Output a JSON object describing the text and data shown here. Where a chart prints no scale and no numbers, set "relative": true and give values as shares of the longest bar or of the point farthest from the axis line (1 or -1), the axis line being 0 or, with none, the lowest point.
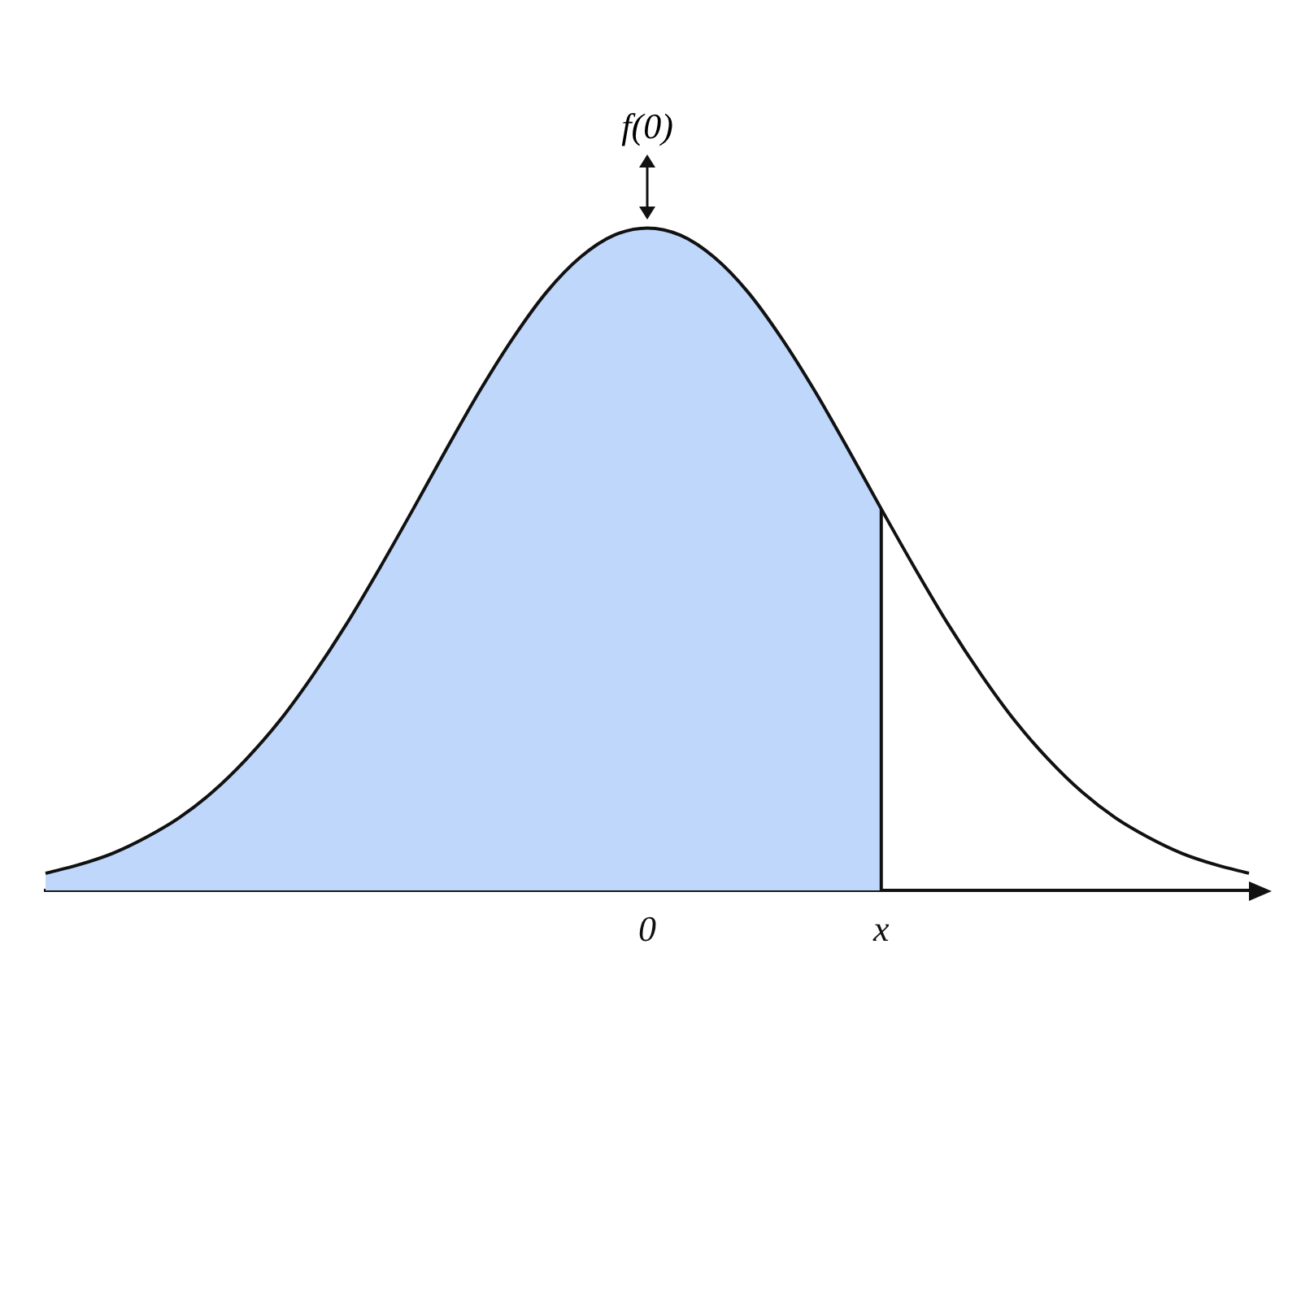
{
  "chart_data": {
    "type": "line",
    "relative": true,
    "legend": false,
    "grid": false,
    "categories": [
      null,
      null,
      null,
      null,
      null,
      null,
      null,
      null,
      null,
      null,
      null,
      null,
      null,
      null,
      null,
      null,
      null,
      null,
      "0",
      null,
      null,
      null,
      null,
      null,
      null,
      "x",
      null,
      null,
      null,
      null,
      null,
      null,
      null,
      null,
      null,
      null,
      null
    ],
    "series": [
      {
        "type": "area",
        "color": "#bfd7fb",
        "values": [
          0.026,
          0.039,
          0.056,
          0.08,
          0.11,
          0.149,
          0.198,
          0.256,
          0.325,
          0.402,
          0.487,
          0.576,
          0.667,
          0.755,
          0.835,
          0.904,
          0.956,
          0.989,
          1,
          0.989,
          0.956,
          0.904,
          0.835,
          0.755,
          0.667,
          0.576,
          null,
          null,
          null,
          null,
          null,
          null,
          null,
          null,
          null,
          null,
          null
        ]
      },
      {
        "type": "line",
        "color": "#111111",
        "values": [
          0.026,
          0.039,
          0.056,
          0.08,
          0.11,
          0.149,
          0.198,
          0.256,
          0.325,
          0.402,
          0.487,
          0.576,
          0.667,
          0.755,
          0.835,
          0.904,
          0.956,
          0.989,
          1,
          0.989,
          0.956,
          0.904,
          0.835,
          0.755,
          0.667,
          0.576,
          0.487,
          0.402,
          0.325,
          0.256,
          0.198,
          0.149,
          0.11,
          0.08,
          0.056,
          0.039,
          0.026
        ]
      }
    ],
    "ref_lines": [
      {
        "axis": "x",
        "value": "x",
        "color": "#111111"
      }
    ],
    "annotations": [
      {
        "text": "f(0)",
        "x": "0",
        "y": 1
      }
    ]
  }
}
